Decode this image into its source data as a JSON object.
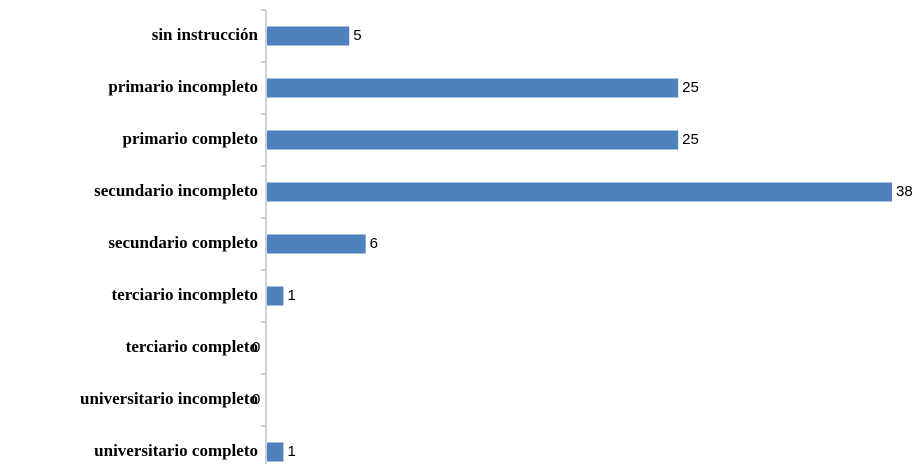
{
  "chart_data": {
    "type": "bar",
    "orientation": "horizontal",
    "categories": [
      "sin instrucción",
      "primario incompleto",
      "primario completo",
      "secundario incompleto",
      "secundario completo",
      "terciario incompleto",
      "terciario completo",
      "universitario incompleto",
      "universitario completo"
    ],
    "values": [
      5,
      25,
      25,
      38,
      6,
      1,
      0,
      0,
      1
    ],
    "data_labels": [
      "5",
      "25",
      "25",
      "38",
      "6",
      "1",
      "0",
      "0",
      "1"
    ],
    "bar_color": "#4F81BD",
    "axis_color": "#A6A6A6",
    "xlim": [
      0,
      38
    ],
    "grid": false,
    "legend": "none",
    "title": "",
    "xlabel": "",
    "ylabel": ""
  }
}
